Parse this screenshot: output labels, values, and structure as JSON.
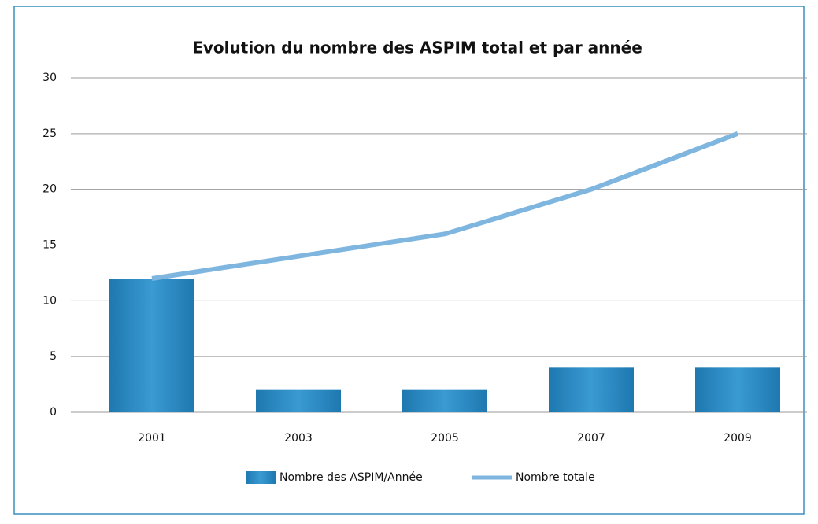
{
  "chart_data": {
    "type": "bar",
    "title": "Evolution du nombre des ASPIM total et par année",
    "categories": [
      "2001",
      "2003",
      "2005",
      "2007",
      "2009"
    ],
    "series": [
      {
        "name": "Nombre des ASPIM/Année",
        "type": "bar",
        "color": "#2a8bc4",
        "values": [
          12,
          2,
          2,
          4,
          4
        ]
      },
      {
        "name": "Nombre totale",
        "type": "line",
        "color": "#7fb6e0",
        "values": [
          12,
          14,
          16,
          20,
          25
        ]
      }
    ],
    "ylim": [
      0,
      30
    ],
    "yticks": [
      0,
      5,
      10,
      15,
      20,
      25,
      30
    ],
    "grid": true,
    "legend": "bottom"
  }
}
